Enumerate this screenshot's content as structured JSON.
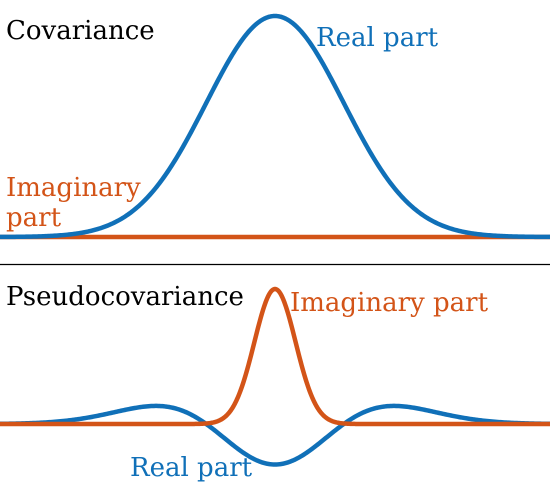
{
  "colors": {
    "real": "#1070b8",
    "imaginary": "#d35418",
    "divider": "#000000",
    "background": "#ffffff"
  },
  "chart_data": [
    {
      "type": "line",
      "title": "Covariance",
      "xlabel": "",
      "ylabel": "",
      "grid": false,
      "axes_visible": false,
      "series": [
        {
          "name": "Real part",
          "color": "#1070b8",
          "shape": "gaussian peak, width ~1.0",
          "x": [
            -4,
            -3.5,
            -3,
            -2.5,
            -2,
            -1.5,
            -1,
            -0.5,
            0,
            0.5,
            1,
            1.5,
            2,
            2.5,
            3,
            3.5,
            4
          ],
          "y": [
            0.0003,
            0.0022,
            0.0111,
            0.0439,
            0.1353,
            0.3247,
            0.6065,
            0.8825,
            1.0,
            0.8825,
            0.6065,
            0.3247,
            0.1353,
            0.0439,
            0.0111,
            0.0022,
            0.0003
          ]
        },
        {
          "name": "Imaginary part",
          "color": "#d35418",
          "shape": "identically zero",
          "x": [
            -4,
            4
          ],
          "y": [
            0,
            0
          ]
        }
      ],
      "annotations": [
        {
          "text": "Real part",
          "series": "Real part"
        },
        {
          "text": "Imaginary\npart",
          "series": "Imaginary part"
        }
      ]
    },
    {
      "type": "line",
      "title": "Pseudocovariance",
      "xlabel": "",
      "ylabel": "",
      "grid": false,
      "axes_visible": false,
      "series": [
        {
          "name": "Imaginary part",
          "color": "#d35418",
          "shape": "narrow gaussian peak, width ~0.35",
          "x": [
            -4,
            -1.5,
            -1,
            -0.75,
            -0.5,
            -0.25,
            0,
            0.25,
            0.5,
            0.75,
            1,
            1.5,
            4
          ],
          "y": [
            0,
            0,
            0.0017,
            0.027,
            0.16,
            0.6,
            1.0,
            0.6,
            0.16,
            0.027,
            0.0017,
            0,
            0
          ]
        },
        {
          "name": "Real part",
          "color": "#1070b8",
          "shape": "central dip with two side lobes",
          "x": [
            -4,
            -3.5,
            -3,
            -2.5,
            -2,
            -1.5,
            -1,
            -0.5,
            0,
            0.5,
            1,
            1.5,
            2,
            2.5,
            3,
            3.5,
            4
          ],
          "y": [
            0.0,
            0.006,
            0.028,
            0.1,
            0.177,
            0.2,
            0.135,
            -0.018,
            -0.3,
            -0.018,
            0.135,
            0.2,
            0.177,
            0.1,
            0.028,
            0.006,
            0.0
          ]
        }
      ],
      "annotations": [
        {
          "text": "Imaginary part",
          "series": "Imaginary part"
        },
        {
          "text": "Real part",
          "series": "Real part"
        }
      ]
    }
  ]
}
